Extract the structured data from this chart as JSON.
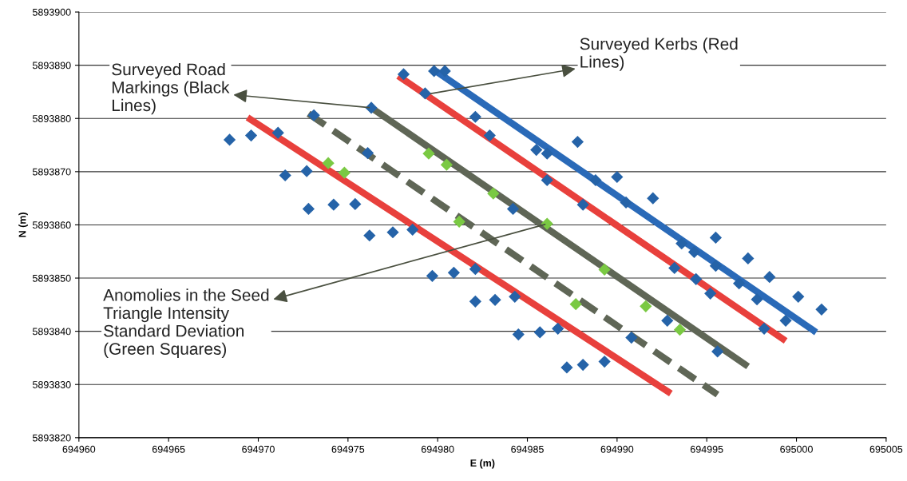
{
  "chart_data": {
    "type": "scatter",
    "xlabel": "E (m)",
    "ylabel": "N (m)",
    "xlim": [
      694960,
      695005
    ],
    "xticks": [
      694960,
      694965,
      694970,
      694975,
      694980,
      694985,
      694990,
      694995,
      695000,
      695005
    ],
    "ylim": [
      5893820,
      5893900
    ],
    "yticks": [
      5893820,
      5893830,
      5893840,
      5893850,
      5893860,
      5893870,
      5893880,
      5893890,
      5893900
    ],
    "grid": "y",
    "series": [
      {
        "color": "#2563a8",
        "marker": "diamond",
        "x": [
          694968.4,
          694969.6,
          694971.1,
          694971.5,
          694972.7,
          694973.1,
          694972.8,
          694974.2,
          694975.4,
          694976.2,
          694977.5,
          694978.6,
          694976.1,
          694976.3,
          694978.1,
          694979.8,
          694980.4,
          694979.3,
          694979.7,
          694980.9,
          694982.1,
          694982.1,
          694983.2,
          694984.3,
          694984.5,
          694985.7,
          694986.7,
          694987.2,
          694988.1,
          694989.3,
          694982.1,
          694982.9,
          694985.5,
          694986.1,
          694987.8,
          694986.1,
          694988.8,
          694990.0,
          694990.5,
          694988.1,
          694992.0,
          694984.2,
          694993.6,
          694994.3,
          694993.2,
          694995.5,
          694995.5,
          694994.4,
          694995.2,
          694996.8,
          694997.3,
          694997.8,
          694998.5,
          694999.4,
          695000.1,
          695001.4,
          694998.2,
          694995.6,
          694990.8,
          694992.8
        ],
        "values": [
          5893876.0,
          5893876.8,
          5893877.3,
          5893869.3,
          5893870.1,
          5893880.6,
          5893863.0,
          5893863.8,
          5893863.9,
          5893858.0,
          5893858.6,
          5893859.1,
          5893873.5,
          5893882.0,
          5893888.3,
          5893888.9,
          5893888.9,
          5893884.7,
          5893850.4,
          5893851.0,
          5893851.7,
          5893845.6,
          5893845.9,
          5893846.5,
          5893839.4,
          5893839.8,
          5893840.5,
          5893833.2,
          5893833.7,
          5893834.3,
          5893880.3,
          5893876.8,
          5893874.1,
          5893873.4,
          5893875.6,
          5893868.4,
          5893868.4,
          5893869.0,
          5893864.2,
          5893863.8,
          5893865.0,
          5893863.0,
          5893856.5,
          5893854.9,
          5893851.9,
          5893857.6,
          5893852.3,
          5893849.8,
          5893847.1,
          5893849.0,
          5893853.7,
          5893846.0,
          5893850.2,
          5893842.0,
          5893846.5,
          5893844.1,
          5893840.5,
          5893836.2,
          5893838.8,
          5893842.0
        ]
      },
      {
        "type": "line",
        "color": "#e8403c",
        "line_style": "solid",
        "x": [
          694969.4,
          694993.0
        ],
        "values": [
          5893880.2,
          5893828.3
        ]
      },
      {
        "type": "line",
        "color": "#e8403c",
        "line_style": "solid",
        "x": [
          694977.8,
          694999.4
        ],
        "values": [
          5893888.0,
          5893838.2
        ]
      },
      {
        "type": "line",
        "color": "#2a6ab8",
        "line_style": "solid",
        "x": [
          694979.9,
          695001.1
        ],
        "values": [
          5893888.9,
          5893839.8
        ]
      },
      {
        "type": "line",
        "color": "#5f6656",
        "line_style": "solid",
        "x": [
          694976.3,
          694997.3
        ],
        "values": [
          5893882.0,
          5893833.4
        ]
      },
      {
        "type": "line",
        "color": "#5f6656",
        "line_style": "dashed",
        "x": [
          694972.8,
          694995.6
        ],
        "values": [
          5893880.9,
          5893828.1
        ]
      },
      {
        "color": "#7ac943",
        "marker": "diamond",
        "x": [
          694973.9,
          694974.8,
          694979.5,
          694980.5,
          694983.1,
          694981.2,
          694986.1,
          694989.3,
          694987.7,
          694991.6,
          694993.5
        ],
        "values": [
          5893871.6,
          5893869.8,
          5893873.4,
          5893871.3,
          5893865.9,
          5893860.6,
          5893860.2,
          5893851.6,
          5893845.1,
          5893844.7,
          5893840.3
        ]
      }
    ],
    "annotations": [
      {
        "text": "Surveyed Road\nMarkings (Black\nLines)",
        "x": 694976.3,
        "y": 5893882.0
      },
      {
        "text": "Surveyed Kerbs (Red\nLines)",
        "x": 694979.5,
        "y": 5893884.6
      },
      {
        "text": "Anomolies in the Seed\nTriangle Intensity\nStandard Deviation\n(Green Squares)",
        "x": 694986.1,
        "y": 5893860.2
      }
    ]
  }
}
